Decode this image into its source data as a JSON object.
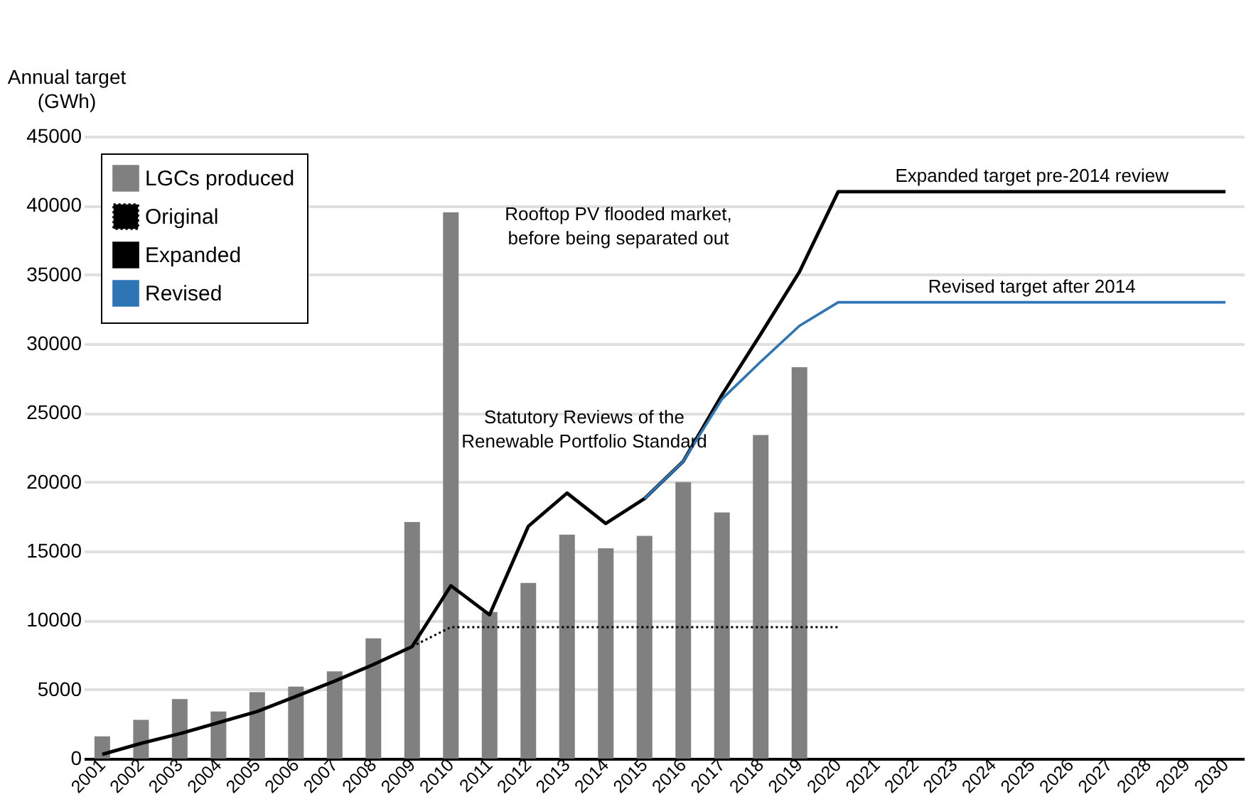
{
  "chart_data": {
    "type": "bar",
    "ylabel": "Annual target\n(GWh)",
    "categories": [
      "2001",
      "2002",
      "2003",
      "2004",
      "2005",
      "2006",
      "2007",
      "2008",
      "2009",
      "2010",
      "2011",
      "2012",
      "2013",
      "2014",
      "2015",
      "2016",
      "2017",
      "2018",
      "2019",
      "2020",
      "2021",
      "2022",
      "2023",
      "2024",
      "2025",
      "2026",
      "2027",
      "2028",
      "2029",
      "2030"
    ],
    "series": [
      {
        "name": "LGCs produced",
        "color": "#808080",
        "values": [
          1600,
          2800,
          4300,
          3400,
          4800,
          5200,
          6300,
          8700,
          17100,
          39500,
          10600,
          12700,
          16200,
          15200,
          16100,
          20000,
          17800,
          23400,
          28300,
          null,
          null,
          null,
          null,
          null,
          null,
          null,
          null,
          null,
          null,
          null
        ]
      },
      {
        "name": "Original",
        "type": "line",
        "line_style": "dotted",
        "color": "#000000",
        "values": [
          null,
          null,
          null,
          null,
          null,
          null,
          null,
          null,
          8100,
          9500,
          9500,
          9500,
          9500,
          9500,
          9500,
          9500,
          9500,
          9500,
          9500,
          9500,
          null,
          null,
          null,
          null,
          null,
          null,
          null,
          null,
          null,
          null
        ]
      },
      {
        "name": "Expanded",
        "type": "line",
        "line_style": "solid",
        "color": "#000000",
        "values": [
          300,
          1100,
          1800,
          2600,
          3400,
          4500,
          5600,
          6800,
          8100,
          12500,
          10400,
          16800,
          19200,
          17000,
          18800,
          21500,
          26300,
          30700,
          35200,
          41000,
          41000,
          41000,
          41000,
          41000,
          41000,
          41000,
          41000,
          41000,
          41000,
          41000
        ]
      },
      {
        "name": "Revised",
        "type": "line",
        "line_style": "solid",
        "color": "#2e75b6",
        "values": [
          null,
          null,
          null,
          null,
          null,
          null,
          null,
          null,
          null,
          null,
          null,
          null,
          null,
          null,
          18800,
          21500,
          26000,
          28700,
          31300,
          33000,
          33000,
          33000,
          33000,
          33000,
          33000,
          33000,
          33000,
          33000,
          33000,
          33000
        ]
      }
    ],
    "ylim": [
      0,
      45000
    ],
    "yticks": [
      0,
      5000,
      10000,
      15000,
      20000,
      25000,
      30000,
      35000,
      40000,
      45000
    ],
    "grid": "y",
    "legend": "top left",
    "marker": "none",
    "annotations": [
      "Rooftop PV flooded market,\nbefore being separated out",
      "Statutory Reviews of the\nRenewable Portfolio Standard",
      {
        "text": "Expanded target pre-2014 review",
        "x": "2025",
        "y": 41000
      },
      {
        "text": "Revised target after 2014",
        "x": "2025",
        "y": 33000
      }
    ]
  }
}
